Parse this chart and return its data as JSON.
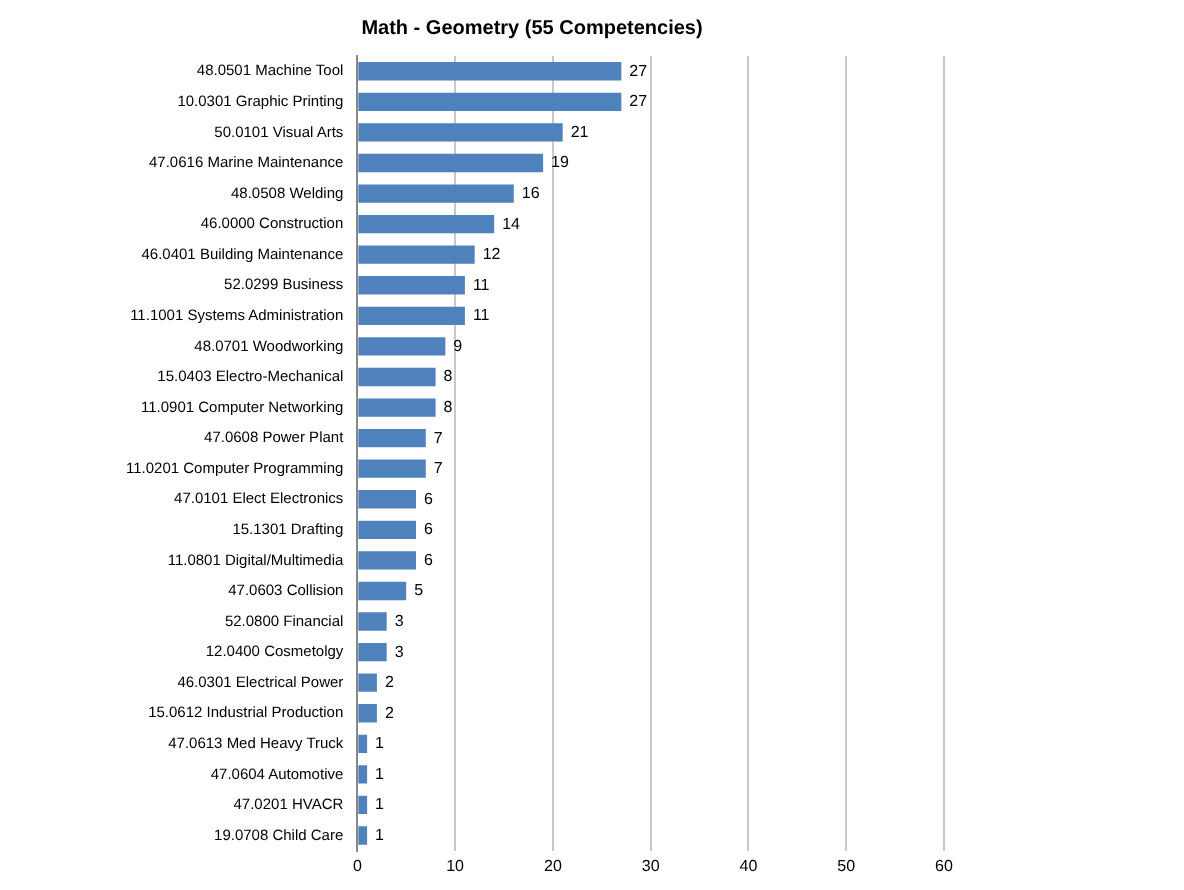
{
  "chart_data": {
    "type": "bar",
    "orientation": "horizontal",
    "title": "Math - Geometry (55 Competencies)",
    "categories": [
      "48.0501 Machine Tool",
      "10.0301 Graphic Printing",
      "50.0101 Visual Arts",
      "47.0616 Marine Maintenance",
      "48.0508 Welding",
      "46.0000 Construction",
      "46.0401 Building Maintenance",
      "52.0299 Business",
      "11.1001 Systems Administration",
      "48.0701 Woodworking",
      "15.0403 Electro-Mechanical",
      "11.0901 Computer Networking",
      "47.0608 Power Plant",
      "11.0201 Computer Programming",
      "47.0101 Elect Electronics",
      "15.1301 Drafting",
      "11.0801 Digital/Multimedia",
      "47.0603 Collision",
      "52.0800 Financial",
      "12.0400 Cosmetolgy",
      "46.0301 Electrical Power",
      "15.0612 Industrial Production",
      "47.0613 Med Heavy Truck",
      "47.0604 Automotive",
      "47.0201 HVACR",
      "19.0708 Child Care"
    ],
    "values": [
      27,
      27,
      21,
      19,
      16,
      14,
      12,
      11,
      11,
      9,
      8,
      8,
      7,
      7,
      6,
      6,
      6,
      5,
      3,
      3,
      2,
      2,
      1,
      1,
      1,
      1
    ],
    "color": "#4f81bd",
    "xlim": [
      0,
      60
    ],
    "xticks": [
      0,
      10,
      20,
      30,
      40,
      50,
      60
    ],
    "grid": "x",
    "data_labels": true,
    "legend": false
  }
}
